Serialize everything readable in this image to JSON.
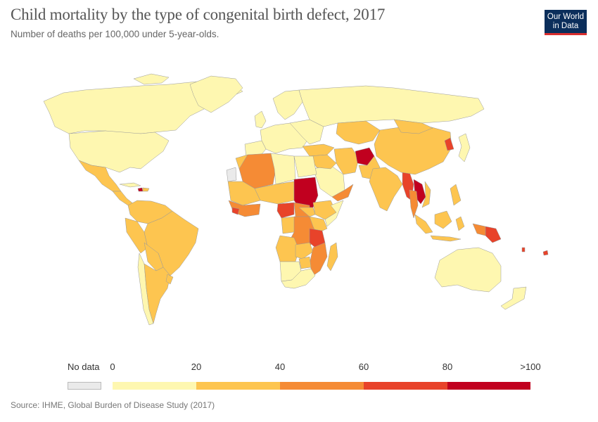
{
  "title": "Child mortality by the type of congenital birth defect, 2017",
  "subtitle": "Number of deaths per 100,000 under 5-year-olds.",
  "logo": {
    "line1": "Our World",
    "line2": "in Data",
    "bg": "#0b2e5b",
    "accent": "#d92e2e"
  },
  "legend": {
    "no_data_label": "No data",
    "ticks": [
      "0",
      "20",
      "40",
      "60",
      "80",
      ">100"
    ],
    "bins": [
      {
        "range": "0–20",
        "color": "#fef7b0"
      },
      {
        "range": "20–40",
        "color": "#fdc550"
      },
      {
        "range": "40–60",
        "color": "#f58b35"
      },
      {
        "range": "60–80",
        "color": "#e8432a"
      },
      {
        "range": "80–100+",
        "color": "#c1001f"
      }
    ]
  },
  "source": "Source: IHME, Global Burden of Disease Study (2017)"
}
